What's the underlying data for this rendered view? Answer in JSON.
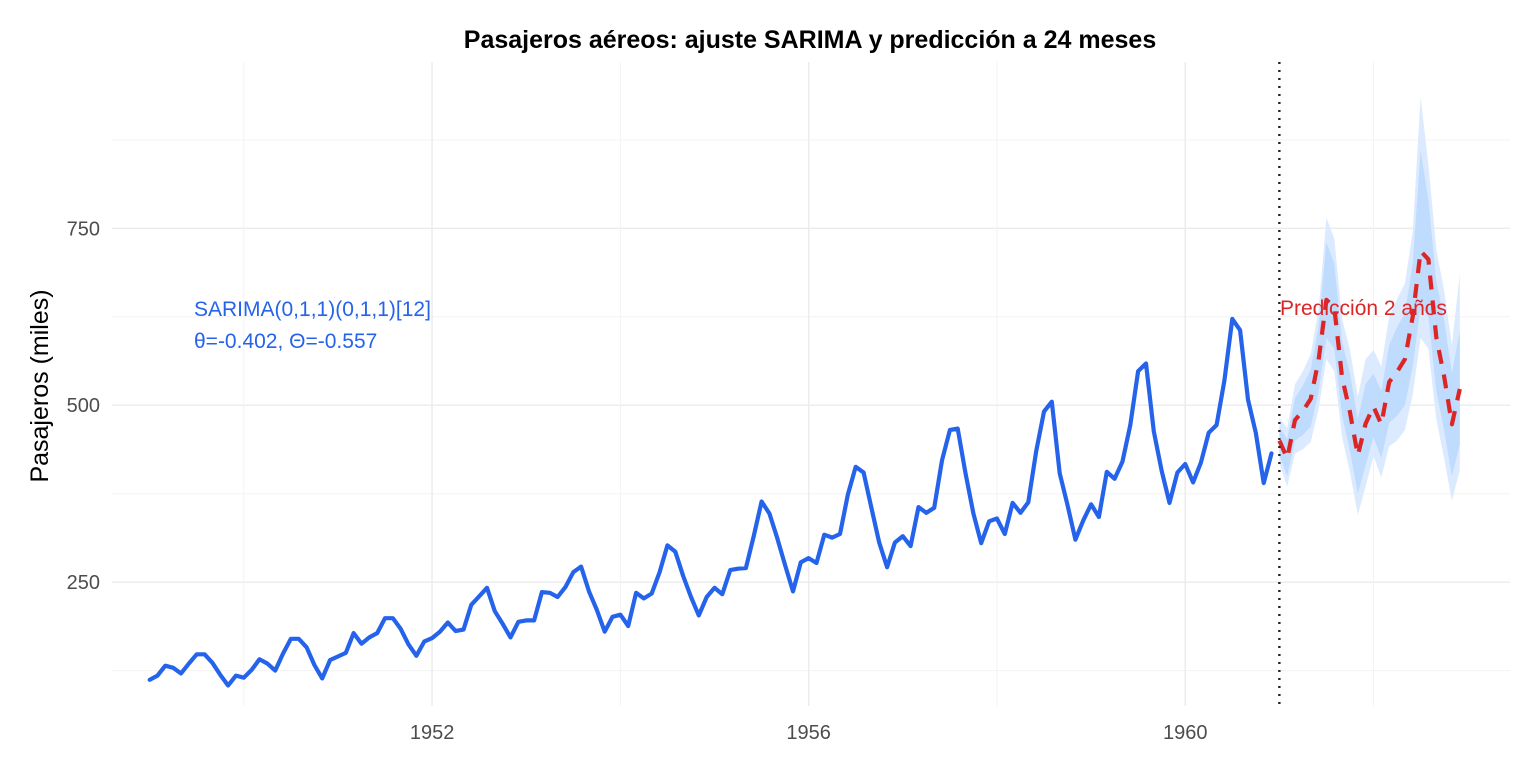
{
  "chart_data": {
    "type": "line",
    "title": "Pasajeros aéreos: ajuste SARIMA y predicción a 24 meses",
    "xlabel": "",
    "ylabel": "Pasajeros (miles)",
    "xlim": [
      1948.6,
      1963.45
    ],
    "ylim": [
      75,
      985
    ],
    "x_ticks": [
      1952,
      1956,
      1960
    ],
    "y_ticks": [
      250,
      500,
      750
    ],
    "grid": true,
    "series": [
      {
        "role": "observed",
        "color": "#2563eb",
        "start": 1949.0,
        "step": 0.083333,
        "values": [
          112,
          118,
          132,
          129,
          121,
          135,
          148,
          148,
          136,
          119,
          104,
          118,
          115,
          126,
          141,
          135,
          125,
          149,
          170,
          170,
          158,
          133,
          114,
          140,
          145,
          150,
          178,
          163,
          172,
          178,
          199,
          199,
          184,
          162,
          146,
          166,
          171,
          180,
          193,
          181,
          183,
          218,
          230,
          242,
          209,
          191,
          172,
          194,
          196,
          196,
          236,
          235,
          229,
          243,
          264,
          272,
          237,
          211,
          180,
          201,
          204,
          188,
          235,
          227,
          234,
          264,
          302,
          293,
          259,
          229,
          203,
          229,
          242,
          233,
          267,
          269,
          270,
          315,
          364,
          347,
          312,
          274,
          237,
          278,
          284,
          277,
          317,
          313,
          318,
          374,
          413,
          405,
          355,
          306,
          271,
          306,
          315,
          301,
          356,
          348,
          355,
          422,
          465,
          467,
          404,
          347,
          305,
          336,
          340,
          318,
          362,
          348,
          363,
          435,
          491,
          505,
          404,
          359,
          310,
          337,
          360,
          342,
          406,
          396,
          420,
          472,
          548,
          559,
          463,
          407,
          362,
          405,
          417,
          391,
          419,
          461,
          472,
          535,
          622,
          606,
          508,
          461,
          390,
          432
        ]
      },
      {
        "role": "forecast",
        "color": "#dc2626",
        "start": 1961.0,
        "step": 0.083333,
        "values": [
          450,
          425,
          479,
          492,
          509,
          564,
          649,
          638,
          539,
          490,
          429,
          474,
          498,
          473,
          533,
          547,
          565,
          625,
          718,
          706,
          596,
          541,
          473,
          523
        ],
        "lo80": [
          430,
          400,
          450,
          458,
          470,
          520,
          595,
          580,
          485,
          435,
          375,
          415,
          455,
          425,
          475,
          485,
          500,
          555,
          640,
          625,
          520,
          465,
          400,
          445
        ],
        "hi80": [
          470,
          452,
          510,
          528,
          550,
          610,
          730,
          700,
          590,
          545,
          480,
          530,
          545,
          520,
          585,
          610,
          630,
          700,
          860,
          790,
          675,
          620,
          545,
          605
        ],
        "lo95": [
          418,
          385,
          432,
          438,
          448,
          495,
          565,
          548,
          455,
          405,
          345,
          385,
          428,
          398,
          442,
          450,
          465,
          515,
          595,
          580,
          480,
          425,
          365,
          408
        ],
        "hi95": [
          482,
          468,
          530,
          548,
          572,
          635,
          765,
          735,
          622,
          578,
          512,
          565,
          578,
          555,
          625,
          650,
          672,
          745,
          935,
          840,
          720,
          662,
          585,
          685
        ],
        "band_colors": {
          "pi95": "#dbeafe",
          "pi80": "#bfdbfe"
        }
      }
    ],
    "vline": {
      "x": 1961.0,
      "style": "dotted",
      "color": "#222222"
    },
    "annotations": {
      "model_line1": "SARIMA(0,1,1)(0,1,1)[12]",
      "model_line2": "θ=-0.402, Θ=-0.557",
      "forecast_label": "Predicción 2 años"
    }
  }
}
